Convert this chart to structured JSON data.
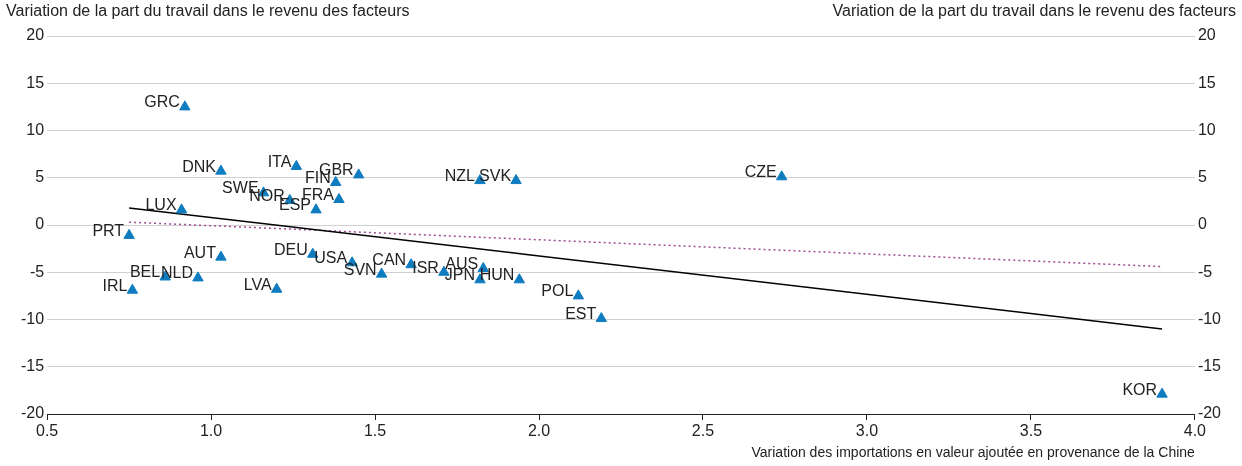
{
  "chart_data": {
    "type": "scatter",
    "xlabel": "Variation des importations en valeur ajoutée en provenance de la Chine",
    "ylabel": "Variation de la part du travail dans le revenu des facteurs",
    "y2label": "Variation de la part du travail dans le revenu des facteurs",
    "xlim": [
      0.5,
      4.0
    ],
    "xticks": [
      {
        "value": 0.5,
        "label": "0.5"
      },
      {
        "value": 1,
        "label": "1.0"
      },
      {
        "value": 1.5,
        "label": "1.5"
      },
      {
        "value": 2,
        "label": "2.0"
      },
      {
        "value": 2.5,
        "label": "2.5"
      },
      {
        "value": 3,
        "label": "3.0"
      },
      {
        "value": 3.5,
        "label": "3.5"
      },
      {
        "value": 4,
        "label": "4.0"
      }
    ],
    "ylim": [
      -20,
      20
    ],
    "yticks": [
      -20,
      -15,
      -10,
      -5,
      0,
      5,
      10,
      15,
      20
    ],
    "y2lim": [
      -20,
      20
    ],
    "y2ticks": [
      -20,
      -15,
      -10,
      -5,
      0,
      5,
      10,
      15,
      20
    ],
    "grid": "y",
    "legend": false,
    "marker": "triangle",
    "series": [
      {
        "type": "scatter",
        "color": "#0f7cc0",
        "x": [
          0.92,
          1.03,
          1.26,
          1.45,
          1.38,
          1.16,
          1.24,
          1.39,
          1.32,
          0.91,
          0.75,
          1.82,
          1.93,
          2.74,
          1.03,
          1.31,
          1.43,
          1.61,
          1.52,
          1.71,
          1.83,
          1.82,
          1.94,
          0.86,
          0.96,
          0.76,
          1.2,
          2.12,
          2.19,
          3.9
        ],
        "values": [
          12.5,
          5.7,
          6.2,
          5.3,
          4.5,
          3.4,
          2.6,
          2.7,
          1.6,
          1.6,
          -1.1,
          4.7,
          4.7,
          5.1,
          -3.4,
          -3.1,
          -4.0,
          -4.2,
          -5.2,
          -5.0,
          -4.6,
          -5.8,
          -5.8,
          -5.5,
          -5.6,
          -6.9,
          -6.8,
          -7.5,
          -9.9,
          -17.9
        ]
      },
      {
        "type": "line",
        "color": "#000000",
        "marker": "none",
        "line_style": "solid",
        "x": [
          0.75,
          3.9
        ],
        "values": [
          1.8,
          -11.0
        ]
      },
      {
        "type": "line",
        "color": "#a04c96",
        "marker": "none",
        "line_style": "dotted",
        "x": [
          0.75,
          3.9
        ],
        "values": [
          0.3,
          -4.4
        ]
      }
    ],
    "annotations": [
      {
        "text": "GRC",
        "x": 0.92,
        "y": 12.5
      },
      {
        "text": "DNK",
        "x": 1.03,
        "y": 5.7
      },
      {
        "text": "ITA",
        "x": 1.26,
        "y": 6.2
      },
      {
        "text": "GBR",
        "x": 1.45,
        "y": 5.3
      },
      {
        "text": "FIN",
        "x": 1.38,
        "y": 4.5
      },
      {
        "text": "SWE",
        "x": 1.16,
        "y": 3.4
      },
      {
        "text": "NOR",
        "x": 1.24,
        "y": 2.6
      },
      {
        "text": "FRA",
        "x": 1.39,
        "y": 2.7
      },
      {
        "text": "ESP",
        "x": 1.32,
        "y": 1.6
      },
      {
        "text": "LUX",
        "x": 0.91,
        "y": 1.6
      },
      {
        "text": "PRT",
        "x": 0.75,
        "y": -1.1
      },
      {
        "text": "NZL",
        "x": 1.82,
        "y": 4.7
      },
      {
        "text": "SVK",
        "x": 1.93,
        "y": 4.7
      },
      {
        "text": "CZE",
        "x": 2.74,
        "y": 5.1
      },
      {
        "text": "AUT",
        "x": 1.03,
        "y": -3.4
      },
      {
        "text": "DEU",
        "x": 1.31,
        "y": -3.1
      },
      {
        "text": "USA",
        "x": 1.43,
        "y": -4.0
      },
      {
        "text": "CAN",
        "x": 1.61,
        "y": -4.2
      },
      {
        "text": "SVN",
        "x": 1.52,
        "y": -5.2
      },
      {
        "text": "ISR",
        "x": 1.71,
        "y": -5.0
      },
      {
        "text": "AUS",
        "x": 1.83,
        "y": -4.6
      },
      {
        "text": "JPN",
        "x": 1.82,
        "y": -5.8
      },
      {
        "text": "HUN",
        "x": 1.94,
        "y": -5.8
      },
      {
        "text": "BEL",
        "x": 0.86,
        "y": -5.5
      },
      {
        "text": "NLD",
        "x": 0.96,
        "y": -5.6
      },
      {
        "text": "IRL",
        "x": 0.76,
        "y": -6.9
      },
      {
        "text": "LVA",
        "x": 1.2,
        "y": -6.8
      },
      {
        "text": "POL",
        "x": 2.12,
        "y": -7.5
      },
      {
        "text": "EST",
        "x": 2.19,
        "y": -9.9
      },
      {
        "text": "KOR",
        "x": 3.9,
        "y": -17.9
      }
    ]
  }
}
